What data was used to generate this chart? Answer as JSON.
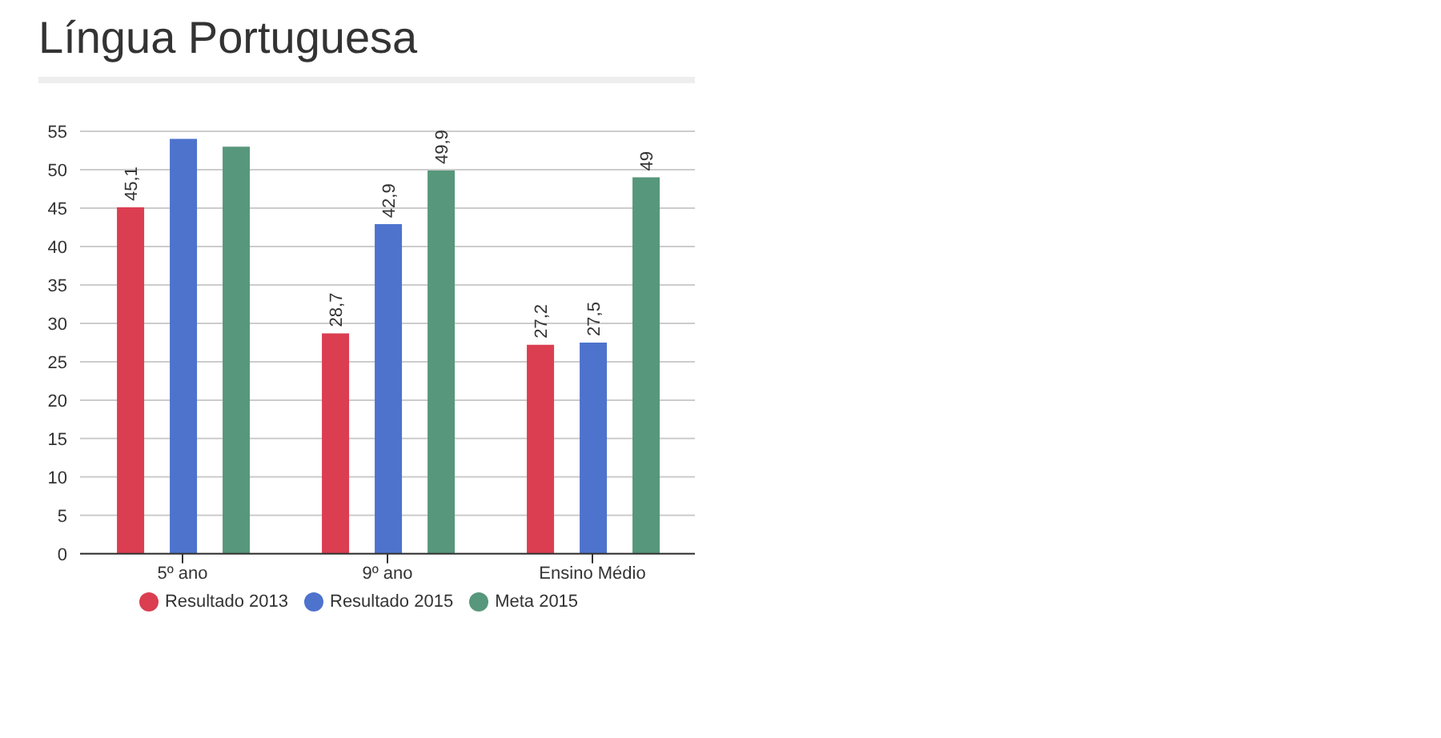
{
  "chart_data": {
    "type": "bar",
    "title": "Língua Portuguesa",
    "categories": [
      "5º ano",
      "9º ano",
      "Ensino Médio"
    ],
    "series": [
      {
        "name": "Resultado 2013",
        "color": "#db3e51",
        "values": [
          45.1,
          28.7,
          27.2
        ],
        "value_labels": [
          "45,1",
          "28,7",
          "27,2"
        ]
      },
      {
        "name": "Resultado 2015",
        "color": "#4e73cd",
        "values": [
          54,
          42.9,
          27.5
        ],
        "value_labels": [
          null,
          "42,9",
          "27,5"
        ]
      },
      {
        "name": "Meta 2015",
        "color": "#57977b",
        "values": [
          53,
          49.9,
          49
        ],
        "value_labels": [
          null,
          "49,9",
          "49"
        ]
      }
    ],
    "ylim": [
      0,
      55
    ],
    "yticks": [
      0,
      5,
      10,
      15,
      20,
      25,
      30,
      35,
      40,
      45,
      50,
      55
    ],
    "grid": "y",
    "legend": "bottom"
  }
}
